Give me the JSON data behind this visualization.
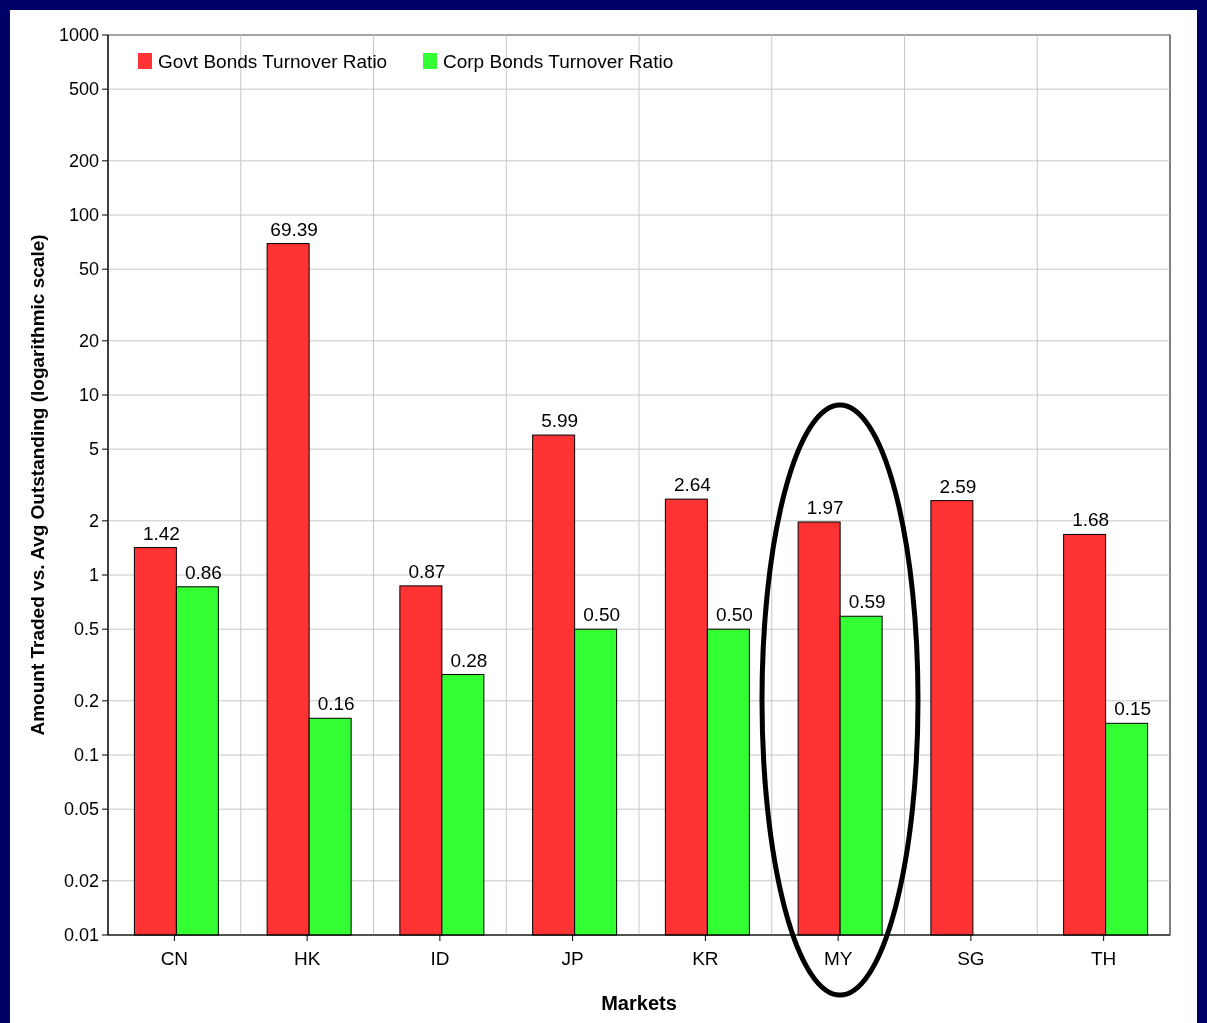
{
  "chart_data": {
    "type": "bar",
    "xlabel": "Markets",
    "ylabel": "Amount Traded vs. Avg Outstanding (logarithmic scale)",
    "categories": [
      "CN",
      "HK",
      "ID",
      "JP",
      "KR",
      "MY",
      "SG",
      "TH"
    ],
    "series": [
      {
        "name": "Govt Bonds Turnover Ratio",
        "color": "#ff3333",
        "values": [
          1.42,
          69.39,
          0.87,
          5.99,
          2.64,
          1.97,
          2.59,
          1.68
        ],
        "value_labels": [
          "1.42",
          "69.39",
          "0.87",
          "5.99",
          "2.64",
          "1.97",
          "2.59",
          "1.68"
        ]
      },
      {
        "name": "Corp Bonds Turnover Ratio",
        "color": "#33ff33",
        "values": [
          0.86,
          0.16,
          0.28,
          0.5,
          0.5,
          0.59,
          null,
          0.15
        ],
        "value_labels": [
          "0.86",
          "0.16",
          "0.28",
          "0.50",
          "0.50",
          "0.59",
          null,
          "0.15"
        ]
      }
    ],
    "log": "y",
    "ylim": [
      0.01,
      1000
    ],
    "yticks": [
      0.01,
      0.02,
      0.05,
      0.1,
      0.2,
      0.5,
      1,
      2,
      5,
      10,
      20,
      50,
      100,
      200,
      500,
      1000
    ],
    "grid": true,
    "legend": "top left"
  }
}
